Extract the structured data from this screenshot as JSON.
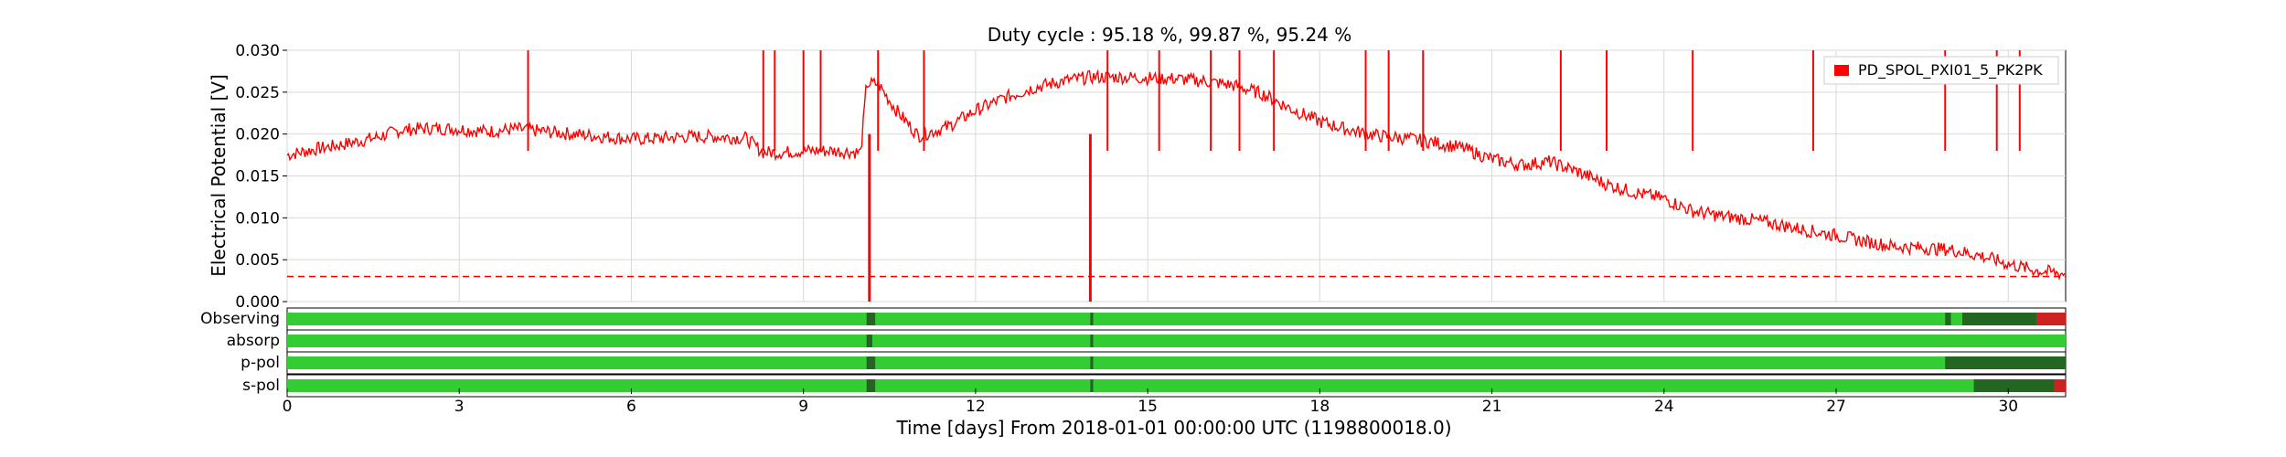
{
  "chart_data": {
    "type": "line",
    "title": "Duty cycle : 95.18 %, 99.87 %, 95.24 %",
    "xlabel": "Time [days] From 2018-01-01 00:00:00 UTC (1198800018.0)",
    "ylabel": "Electrical Potential [V]",
    "xlim": [
      0,
      31
    ],
    "ylim": [
      0,
      0.03
    ],
    "x_ticks": [
      0,
      3,
      6,
      9,
      12,
      15,
      18,
      21,
      24,
      27,
      30
    ],
    "y_ticks": [
      "0.000",
      "0.005",
      "0.010",
      "0.015",
      "0.020",
      "0.025",
      "0.030"
    ],
    "grid": true,
    "legend_position": "top-right",
    "series": [
      {
        "name": "PD_SPOL_PXI01_5_PK2PK",
        "color": "#ff0000",
        "x": [
          0,
          0.5,
          1,
          1.5,
          2,
          2.5,
          3,
          3.5,
          4,
          4.5,
          5,
          5.5,
          6,
          6.5,
          7,
          7.5,
          8,
          8.3,
          8.6,
          9,
          9.5,
          10,
          10.1,
          10.3,
          10.6,
          11,
          11.5,
          12,
          12.5,
          13,
          13.5,
          14,
          14.5,
          15,
          15.5,
          16,
          16.5,
          17,
          17.5,
          18,
          18.5,
          19,
          19.5,
          20,
          20.5,
          21,
          21.5,
          22,
          22.5,
          23,
          23.5,
          24,
          24.5,
          25,
          25.5,
          26,
          26.5,
          27,
          27.5,
          28,
          28.5,
          29,
          29.5,
          30,
          30.5,
          31
        ],
        "y": [
          0.0175,
          0.0182,
          0.0188,
          0.0195,
          0.0205,
          0.0207,
          0.0206,
          0.0203,
          0.0206,
          0.0203,
          0.02,
          0.0197,
          0.0194,
          0.0195,
          0.0197,
          0.0197,
          0.0195,
          0.0178,
          0.0178,
          0.018,
          0.018,
          0.0178,
          0.026,
          0.026,
          0.023,
          0.0198,
          0.0208,
          0.0228,
          0.0243,
          0.0255,
          0.0263,
          0.0268,
          0.0268,
          0.0267,
          0.0266,
          0.0263,
          0.0258,
          0.0248,
          0.023,
          0.0215,
          0.0205,
          0.0198,
          0.0195,
          0.019,
          0.0183,
          0.017,
          0.0163,
          0.0167,
          0.0155,
          0.014,
          0.013,
          0.0123,
          0.0108,
          0.0102,
          0.0098,
          0.0092,
          0.0085,
          0.0079,
          0.0072,
          0.0066,
          0.0064,
          0.0062,
          0.0055,
          0.0045,
          0.0037,
          0.0033
        ]
      }
    ],
    "spikes": [
      {
        "x": 4.2,
        "y": 0.03
      },
      {
        "x": 8.3,
        "y": 0.03
      },
      {
        "x": 8.5,
        "y": 0.03
      },
      {
        "x": 9.0,
        "y": 0.03
      },
      {
        "x": 9.3,
        "y": 0.03
      },
      {
        "x": 10.3,
        "y": 0.03
      },
      {
        "x": 11.1,
        "y": 0.03
      },
      {
        "x": 14.3,
        "y": 0.03
      },
      {
        "x": 15.2,
        "y": 0.03
      },
      {
        "x": 16.1,
        "y": 0.03
      },
      {
        "x": 16.6,
        "y": 0.03
      },
      {
        "x": 17.2,
        "y": 0.03
      },
      {
        "x": 18.8,
        "y": 0.03
      },
      {
        "x": 19.2,
        "y": 0.03
      },
      {
        "x": 19.8,
        "y": 0.03
      },
      {
        "x": 22.2,
        "y": 0.03
      },
      {
        "x": 23.0,
        "y": 0.03
      },
      {
        "x": 24.5,
        "y": 0.03
      },
      {
        "x": 26.6,
        "y": 0.03
      },
      {
        "x": 28.9,
        "y": 0.03
      },
      {
        "x": 29.8,
        "y": 0.03
      },
      {
        "x": 30.2,
        "y": 0.03
      }
    ],
    "dips": [
      {
        "x": 10.15,
        "y": 0.0
      },
      {
        "x": 14.0,
        "y": 0.0
      }
    ],
    "threshold": {
      "value": 0.003,
      "color": "#ff0000",
      "style": "dashed"
    },
    "segments": {
      "colors": {
        "active": "#33cc33",
        "flag": "#226622",
        "bad": "#cc2222"
      },
      "rows": [
        {
          "label": "Observing",
          "blocks": [
            {
              "start": 0,
              "end": 31,
              "state": "active"
            },
            {
              "start": 10.1,
              "end": 10.25,
              "state": "flag"
            },
            {
              "start": 14.0,
              "end": 14.05,
              "state": "flag"
            },
            {
              "start": 28.9,
              "end": 29.0,
              "state": "flag"
            },
            {
              "start": 29.2,
              "end": 30.5,
              "state": "flag"
            },
            {
              "start": 30.5,
              "end": 31,
              "state": "bad"
            }
          ]
        },
        {
          "label": "absorp",
          "blocks": [
            {
              "start": 0,
              "end": 31,
              "state": "active"
            },
            {
              "start": 10.1,
              "end": 10.2,
              "state": "flag"
            },
            {
              "start": 14.0,
              "end": 14.05,
              "state": "flag"
            }
          ]
        },
        {
          "label": "p-pol",
          "blocks": [
            {
              "start": 0,
              "end": 31,
              "state": "active"
            },
            {
              "start": 10.1,
              "end": 10.25,
              "state": "flag"
            },
            {
              "start": 14.0,
              "end": 14.05,
              "state": "flag"
            },
            {
              "start": 28.9,
              "end": 31,
              "state": "flag"
            }
          ]
        },
        {
          "label": "s-pol",
          "blocks": [
            {
              "start": 0,
              "end": 31,
              "state": "active"
            },
            {
              "start": 10.1,
              "end": 10.25,
              "state": "flag"
            },
            {
              "start": 14.0,
              "end": 14.05,
              "state": "flag"
            },
            {
              "start": 29.4,
              "end": 30.8,
              "state": "flag"
            },
            {
              "start": 30.8,
              "end": 31,
              "state": "bad"
            }
          ]
        }
      ]
    }
  }
}
